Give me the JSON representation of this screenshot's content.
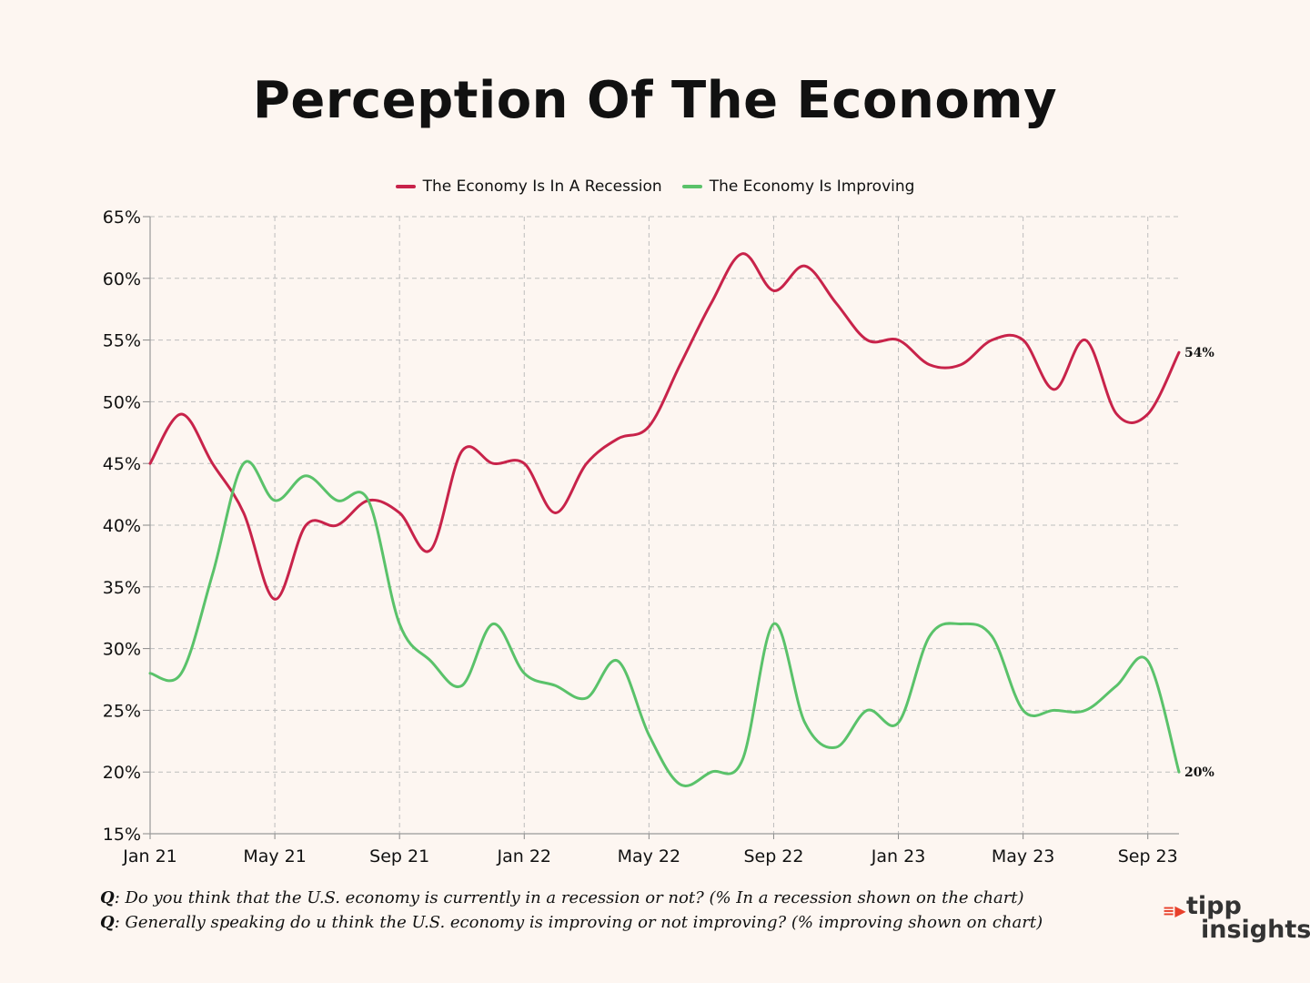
{
  "chart_data": {
    "type": "line",
    "title": "Perception Of The Economy",
    "xlabel": "",
    "ylabel": "",
    "ylim": [
      15,
      65
    ],
    "y_ticks": [
      65,
      60,
      55,
      50,
      45,
      40,
      35,
      30,
      25,
      20,
      15
    ],
    "y_tick_labels": [
      "65%",
      "60%",
      "55%",
      "50%",
      "45%",
      "40%",
      "35%",
      "30%",
      "25%",
      "20%",
      "15%"
    ],
    "x_ticks": [
      "Jan 21",
      "May 21",
      "Sep 21",
      "Jan 22",
      "May 22",
      "Sep 22",
      "Jan 23",
      "May 23",
      "Sep 23"
    ],
    "x": [
      "Jan 21",
      "Feb 21",
      "Mar 21",
      "Apr 21",
      "May 21",
      "Jun 21",
      "Jul 21",
      "Aug 21",
      "Sep 21",
      "Oct 21",
      "Nov 21",
      "Dec 21",
      "Jan 22",
      "Feb 22",
      "Mar 22",
      "Apr 22",
      "May 22",
      "Jun 22",
      "Jul 22",
      "Aug 22",
      "Sep 22",
      "Oct 22",
      "Nov 22",
      "Dec 22",
      "Jan 23",
      "Feb 23",
      "Mar 23",
      "Apr 23",
      "May 23",
      "Jun 23",
      "Jul 23",
      "Aug 23",
      "Sep 23",
      "Oct 23"
    ],
    "grid": true,
    "legend_position": "top-center",
    "series": [
      {
        "name": "The Economy Is In A Recession",
        "color": "#c8234a",
        "values": [
          45,
          49,
          45,
          41,
          34,
          40,
          40,
          42,
          41,
          38,
          46,
          45,
          45,
          41,
          45,
          47,
          48,
          53,
          58,
          62,
          59,
          61,
          58,
          55,
          55,
          53,
          53,
          55,
          55,
          51,
          55,
          49,
          49,
          54
        ],
        "end_label": "54%"
      },
      {
        "name": "The Economy Is Improving",
        "color": "#5ac26a",
        "values": [
          28,
          28,
          36,
          45,
          42,
          44,
          42,
          42,
          32,
          29,
          27,
          32,
          28,
          27,
          26,
          29,
          23,
          19,
          20,
          21,
          32,
          24,
          22,
          25,
          24,
          31,
          32,
          31,
          25,
          25,
          25,
          27,
          29,
          20
        ],
        "end_label": "20%"
      }
    ]
  },
  "footnote": {
    "q_prefix": "Q",
    "q1": ": Do you think that the U.S. economy is currently in a recession or not? (% In a recession shown on the chart)",
    "q2": ": Generally speaking do u think the U.S. economy is improving or not improving? (% improving shown on chart)"
  },
  "brand": {
    "line1": "tipp",
    "line2": "insights",
    "mark_color": "#e8402b"
  }
}
